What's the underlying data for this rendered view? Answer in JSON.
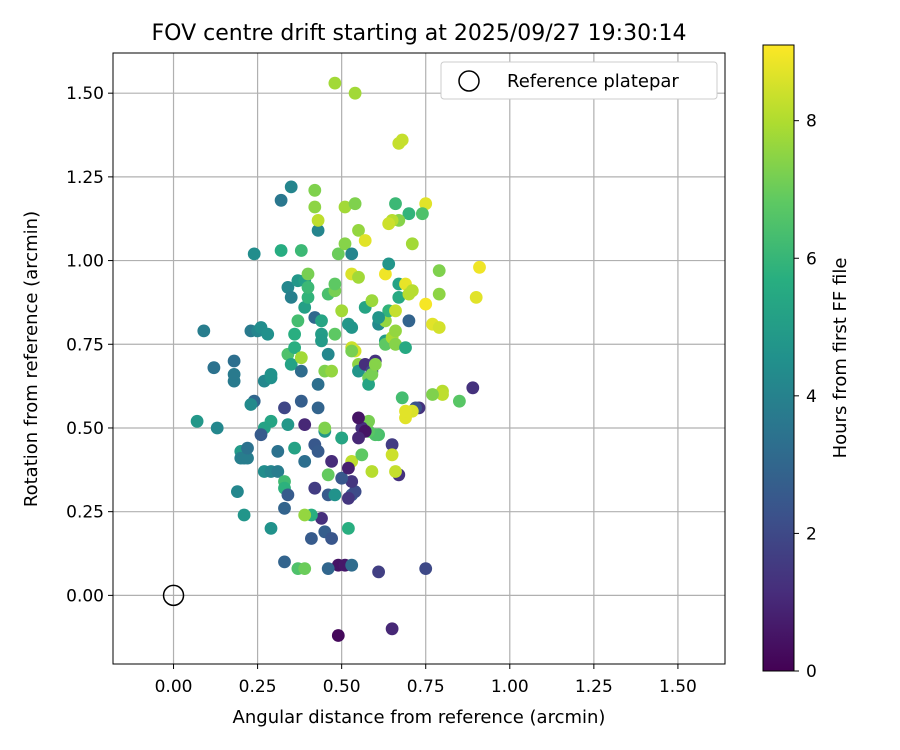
{
  "chart_data": {
    "type": "scatter",
    "title": "FOV centre drift starting at 2025/09/27 19:30:14",
    "xlabel": "Angular distance from reference (arcmin)",
    "ylabel": "Rotation from reference (arcmin)",
    "xlim": [
      -0.18,
      1.64
    ],
    "ylim": [
      -0.205,
      1.62
    ],
    "xticks": [
      0.0,
      0.25,
      0.5,
      0.75,
      1.0,
      1.25,
      1.5
    ],
    "xtick_labels": [
      "0.00",
      "0.25",
      "0.50",
      "0.75",
      "1.00",
      "1.25",
      "1.50"
    ],
    "yticks": [
      0.0,
      0.25,
      0.5,
      0.75,
      1.0,
      1.25,
      1.5
    ],
    "ytick_labels": [
      "0.00",
      "0.25",
      "0.50",
      "0.75",
      "1.00",
      "1.25",
      "1.50"
    ],
    "grid": true,
    "legend": {
      "label": "Reference platepar",
      "placement": "top-right"
    },
    "reference_point": {
      "x": 0.0,
      "y": 0.0
    },
    "colorbar": {
      "label": "Hours from first FF file",
      "range": [
        0,
        9.1
      ],
      "ticks": [
        0,
        2,
        4,
        6,
        8
      ],
      "tick_labels": [
        "0",
        "2",
        "4",
        "6",
        "8"
      ],
      "colormap": "viridis"
    },
    "points": [
      [
        0.49,
        -0.12,
        0.2
      ],
      [
        0.65,
        -0.1,
        1.0
      ],
      [
        0.49,
        0.09,
        0.5
      ],
      [
        0.51,
        0.09,
        0.6
      ],
      [
        0.61,
        0.07,
        1.7
      ],
      [
        0.75,
        0.08,
        2.0
      ],
      [
        0.53,
        0.09,
        3.2
      ],
      [
        0.46,
        0.08,
        3.0
      ],
      [
        0.33,
        0.1,
        2.9
      ],
      [
        0.37,
        0.08,
        6.5
      ],
      [
        0.39,
        0.08,
        7.0
      ],
      [
        0.41,
        0.17,
        2.6
      ],
      [
        0.45,
        0.19,
        2.7
      ],
      [
        0.47,
        0.17,
        2.4
      ],
      [
        0.44,
        0.23,
        1.2
      ],
      [
        0.41,
        0.24,
        5.7
      ],
      [
        0.39,
        0.24,
        7.6
      ],
      [
        0.42,
        0.32,
        1.6
      ],
      [
        0.46,
        0.3,
        2.6
      ],
      [
        0.53,
        0.3,
        2.5
      ],
      [
        0.54,
        0.31,
        2.1
      ],
      [
        0.53,
        0.34,
        1.4
      ],
      [
        0.5,
        0.35,
        2.5
      ],
      [
        0.46,
        0.36,
        6.9
      ],
      [
        0.47,
        0.4,
        1.1
      ],
      [
        0.53,
        0.4,
        8.2
      ],
      [
        0.56,
        0.42,
        6.8
      ],
      [
        0.5,
        0.47,
        6.9
      ],
      [
        0.5,
        0.47,
        5.3
      ],
      [
        0.42,
        0.45,
        2.5
      ],
      [
        0.43,
        0.43,
        2.6
      ],
      [
        0.39,
        0.4,
        3.3
      ],
      [
        0.45,
        0.49,
        4.8
      ],
      [
        0.45,
        0.5,
        7.3
      ],
      [
        0.39,
        0.51,
        1.0
      ],
      [
        0.34,
        0.51,
        4.8
      ],
      [
        0.36,
        0.44,
        5.2
      ],
      [
        0.38,
        0.58,
        2.7
      ],
      [
        0.33,
        0.56,
        1.9
      ],
      [
        0.29,
        0.52,
        5.3
      ],
      [
        0.27,
        0.5,
        5.2
      ],
      [
        0.26,
        0.48,
        2.6
      ],
      [
        0.24,
        0.58,
        3.0
      ],
      [
        0.23,
        0.57,
        4.3
      ],
      [
        0.31,
        0.43,
        3.4
      ],
      [
        0.27,
        0.37,
        4.4
      ],
      [
        0.29,
        0.37,
        4.1
      ],
      [
        0.31,
        0.37,
        3.8
      ],
      [
        0.33,
        0.34,
        6.2
      ],
      [
        0.33,
        0.32,
        5.8
      ],
      [
        0.34,
        0.3,
        2.6
      ],
      [
        0.33,
        0.26,
        2.9
      ],
      [
        0.29,
        0.2,
        4.6
      ],
      [
        0.21,
        0.24,
        4.7
      ],
      [
        0.19,
        0.31,
        4.2
      ],
      [
        0.2,
        0.43,
        4.9
      ],
      [
        0.2,
        0.41,
        3.9
      ],
      [
        0.21,
        0.41,
        3.8
      ],
      [
        0.22,
        0.41,
        3.8
      ],
      [
        0.22,
        0.44,
        3.4
      ],
      [
        0.13,
        0.5,
        4.2
      ],
      [
        0.07,
        0.52,
        4.8
      ],
      [
        0.12,
        0.68,
        3.4
      ],
      [
        0.09,
        0.79,
        3.8
      ],
      [
        0.18,
        0.64,
        3.7
      ],
      [
        0.18,
        0.66,
        3.7
      ],
      [
        0.18,
        0.7,
        3.3
      ],
      [
        0.27,
        0.64,
        4.2
      ],
      [
        0.29,
        0.65,
        4.5
      ],
      [
        0.29,
        0.66,
        4.6
      ],
      [
        0.23,
        0.79,
        3.7
      ],
      [
        0.25,
        0.79,
        4.1
      ],
      [
        0.26,
        0.8,
        4.4
      ],
      [
        0.28,
        0.78,
        4.5
      ],
      [
        0.24,
        1.02,
        4.4
      ],
      [
        0.32,
        1.03,
        5.6
      ],
      [
        0.38,
        1.03,
        6.1
      ],
      [
        0.32,
        1.18,
        3.6
      ],
      [
        0.35,
        1.22,
        4.1
      ],
      [
        0.34,
        0.92,
        4.2
      ],
      [
        0.35,
        0.89,
        3.9
      ],
      [
        0.37,
        0.94,
        4.8
      ],
      [
        0.39,
        0.94,
        5.1
      ],
      [
        0.4,
        0.96,
        7.2
      ],
      [
        0.39,
        0.86,
        5.1
      ],
      [
        0.4,
        0.89,
        5.9
      ],
      [
        0.4,
        0.92,
        6.1
      ],
      [
        0.37,
        0.82,
        6.3
      ],
      [
        0.36,
        0.78,
        5.7
      ],
      [
        0.34,
        0.72,
        6.5
      ],
      [
        0.36,
        0.74,
        5.7
      ],
      [
        0.35,
        0.69,
        5.2
      ],
      [
        0.38,
        0.71,
        7.8
      ],
      [
        0.38,
        0.67,
        3.2
      ],
      [
        0.42,
        0.83,
        3.1
      ],
      [
        0.44,
        0.82,
        5.3
      ],
      [
        0.44,
        0.78,
        5.0
      ],
      [
        0.44,
        0.76,
        4.9
      ],
      [
        0.46,
        0.72,
        4.2
      ],
      [
        0.48,
        0.78,
        6.8
      ],
      [
        0.45,
        0.67,
        7.3
      ],
      [
        0.43,
        0.63,
        3.3
      ],
      [
        0.43,
        0.56,
        2.9
      ],
      [
        0.47,
        0.67,
        7.6
      ],
      [
        0.46,
        0.9,
        6.4
      ],
      [
        0.48,
        0.91,
        7.2
      ],
      [
        0.48,
        0.93,
        6.8
      ],
      [
        0.49,
        1.02,
        7.0
      ],
      [
        0.51,
        1.05,
        7.4
      ],
      [
        0.43,
        1.09,
        4.1
      ],
      [
        0.43,
        1.12,
        8.2
      ],
      [
        0.42,
        1.16,
        7.5
      ],
      [
        0.42,
        1.21,
        7.3
      ],
      [
        0.51,
        1.16,
        7.8
      ],
      [
        0.54,
        1.17,
        7.3
      ],
      [
        0.55,
        1.09,
        7.6
      ],
      [
        0.57,
        1.06,
        8.7
      ],
      [
        0.53,
        1.02,
        4.1
      ],
      [
        0.5,
        0.85,
        7.8
      ],
      [
        0.53,
        0.96,
        8.6
      ],
      [
        0.55,
        0.95,
        7.8
      ],
      [
        0.52,
        0.81,
        4.8
      ],
      [
        0.53,
        0.8,
        4.7
      ],
      [
        0.53,
        0.74,
        8.4
      ],
      [
        0.54,
        0.73,
        8.5
      ],
      [
        0.53,
        0.73,
        7.2
      ],
      [
        0.55,
        0.69,
        7.5
      ],
      [
        0.55,
        0.67,
        4.7
      ],
      [
        0.57,
        0.69,
        1.2
      ],
      [
        0.58,
        0.65,
        7.1
      ],
      [
        0.6,
        0.7,
        1.3
      ],
      [
        0.59,
        0.67,
        2.0
      ],
      [
        0.58,
        0.63,
        5.3
      ],
      [
        0.59,
        0.66,
        7.2
      ],
      [
        0.6,
        0.69,
        7.4
      ],
      [
        0.57,
        0.86,
        5.3
      ],
      [
        0.59,
        0.88,
        7.7
      ],
      [
        0.61,
        0.81,
        4.3
      ],
      [
        0.63,
        0.82,
        7.6
      ],
      [
        0.63,
        0.76,
        5.0
      ],
      [
        0.63,
        0.75,
        6.8
      ],
      [
        0.64,
        0.85,
        5.9
      ],
      [
        0.66,
        0.85,
        8.3
      ],
      [
        0.65,
        0.77,
        7.9
      ],
      [
        0.66,
        0.75,
        7.4
      ],
      [
        0.66,
        0.79,
        7.6
      ],
      [
        0.67,
        0.89,
        5.5
      ],
      [
        0.67,
        0.93,
        5.2
      ],
      [
        0.69,
        0.93,
        8.8
      ],
      [
        0.7,
        0.9,
        8.1
      ],
      [
        0.71,
        0.91,
        8.1
      ],
      [
        0.69,
        0.74,
        5.5
      ],
      [
        0.7,
        0.82,
        2.9
      ],
      [
        0.71,
        1.05,
        7.8
      ],
      [
        0.7,
        1.14,
        5.9
      ],
      [
        0.67,
        1.12,
        7.4
      ],
      [
        0.65,
        1.12,
        8.1
      ],
      [
        0.64,
        1.11,
        8.4
      ],
      [
        0.66,
        1.17,
        6.1
      ],
      [
        0.67,
        1.35,
        8.3
      ],
      [
        0.68,
        1.36,
        8.3
      ],
      [
        0.63,
        0.96,
        8.9
      ],
      [
        0.64,
        0.99,
        4.7
      ],
      [
        0.61,
        0.83,
        4.7
      ],
      [
        0.75,
        1.17,
        8.7
      ],
      [
        0.74,
        1.14,
        6.5
      ],
      [
        0.75,
        0.87,
        9.0
      ],
      [
        0.77,
        0.81,
        8.7
      ],
      [
        0.79,
        0.8,
        8.5
      ],
      [
        0.79,
        0.9,
        7.5
      ],
      [
        0.79,
        0.97,
        7.3
      ],
      [
        0.9,
        0.89,
        8.7
      ],
      [
        0.91,
        0.98,
        8.9
      ],
      [
        0.8,
        0.61,
        8.1
      ],
      [
        0.8,
        0.6,
        8.2
      ],
      [
        0.77,
        0.6,
        7.3
      ],
      [
        0.85,
        0.58,
        6.7
      ],
      [
        0.89,
        0.62,
        1.3
      ],
      [
        0.73,
        0.56,
        1.3
      ],
      [
        0.72,
        0.56,
        2.3
      ],
      [
        0.71,
        0.55,
        8.6
      ],
      [
        0.69,
        0.53,
        8.7
      ],
      [
        0.69,
        0.55,
        8.7
      ],
      [
        0.68,
        0.59,
        6.3
      ],
      [
        0.67,
        0.36,
        1.3
      ],
      [
        0.65,
        0.45,
        1.6
      ],
      [
        0.65,
        0.42,
        8.4
      ],
      [
        0.66,
        0.37,
        8.3
      ],
      [
        0.59,
        0.37,
        8.1
      ],
      [
        0.61,
        0.48,
        6.4
      ],
      [
        0.6,
        0.48,
        6.5
      ],
      [
        0.58,
        0.49,
        6.7
      ],
      [
        0.58,
        0.52,
        7.2
      ],
      [
        0.56,
        0.5,
        1.2
      ],
      [
        0.55,
        0.53,
        0.5
      ],
      [
        0.57,
        0.49,
        0.5
      ],
      [
        0.55,
        0.47,
        1.0
      ],
      [
        0.52,
        0.38,
        0.8
      ],
      [
        0.52,
        0.29,
        1.4
      ],
      [
        0.52,
        0.2,
        5.7
      ],
      [
        0.48,
        0.3,
        4.6
      ],
      [
        0.48,
        1.53,
        7.8
      ],
      [
        0.54,
        1.5,
        7.8
      ]
    ]
  }
}
